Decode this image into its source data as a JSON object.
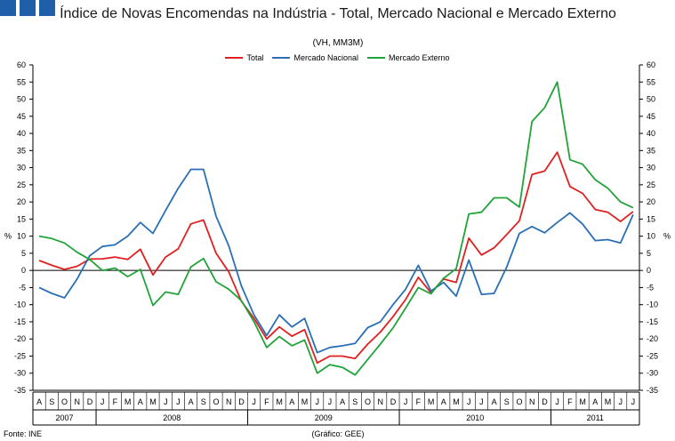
{
  "title": "Índice de Novas Encomendas na Indústria - Total, Mercado Nacional e Mercado Externo",
  "subtitle": "(VH, MM3M)",
  "source": "Fonte: INE",
  "credit": "(Gráfico: GEE)",
  "chart_data": {
    "type": "line",
    "title": "Índice de Novas Encomendas na Indústria - Total, Mercado Nacional e Mercado Externo",
    "subtitle": "(VH, MM3M)",
    "ylabel": "%",
    "ylabel_right": "%",
    "ylim": [
      -35,
      60
    ],
    "ytick_step": 5,
    "yticks": [
      "60",
      "55",
      "50",
      "45",
      "40",
      "35",
      "30",
      "25",
      "20",
      "15",
      "10",
      "5",
      "0",
      "-5",
      "-10",
      "-15",
      "-20",
      "-25",
      "-30",
      "-35"
    ],
    "grid": false,
    "legend_position": "top-center",
    "x": [
      "A",
      "S",
      "O",
      "N",
      "D",
      "J",
      "F",
      "M",
      "A",
      "M",
      "J",
      "J",
      "A",
      "S",
      "O",
      "N",
      "D",
      "J",
      "F",
      "M",
      "A",
      "M",
      "J",
      "J",
      "A",
      "S",
      "O",
      "N",
      "D",
      "J",
      "F",
      "M",
      "A",
      "M",
      "J",
      "J",
      "A",
      "S",
      "O",
      "N",
      "D",
      "J",
      "F",
      "M",
      "A",
      "M",
      "J",
      "J"
    ],
    "year_labels": [
      {
        "label": "2007",
        "start": 0,
        "end": 4
      },
      {
        "label": "2008",
        "start": 5,
        "end": 16
      },
      {
        "label": "2009",
        "start": 17,
        "end": 28
      },
      {
        "label": "2010",
        "start": 29,
        "end": 40
      },
      {
        "label": "2011",
        "start": 41,
        "end": 47
      }
    ],
    "series": [
      {
        "name": "Total",
        "color": "#e02020",
        "values": [
          2.9,
          1.5,
          0.3,
          1.2,
          3.3,
          3.4,
          3.9,
          3.2,
          6.2,
          -1.3,
          3.9,
          6.3,
          13.6,
          14.7,
          5.0,
          -0.4,
          -9.0,
          -14.0,
          -20.0,
          -16.5,
          -19.2,
          -17.3,
          -27.0,
          -25.0,
          -25.0,
          -25.7,
          -21.5,
          -18.0,
          -13.5,
          -8.5,
          -2.0,
          -6.5,
          -2.5,
          -3.5,
          9.4,
          4.5,
          6.6,
          10.5,
          14.5,
          28.0,
          29.0,
          34.5,
          24.5,
          22.5,
          17.8,
          17.0,
          14.3,
          17.2
        ]
      },
      {
        "name": "Mercado Nacional",
        "color": "#2a6fb5",
        "values": [
          -5.0,
          -6.7,
          -8.0,
          -2.5,
          4.3,
          7.0,
          7.5,
          10.0,
          14.0,
          10.8,
          17.5,
          24.0,
          29.5,
          29.5,
          15.8,
          7.2,
          -4.5,
          -13.0,
          -19.0,
          -13.0,
          -16.5,
          -14.0,
          -24.0,
          -22.5,
          -22.0,
          -21.3,
          -16.7,
          -15.0,
          -10.0,
          -5.5,
          1.5,
          -6.0,
          -3.5,
          -7.5,
          3.0,
          -7.0,
          -6.7,
          1.0,
          10.8,
          12.8,
          11.0,
          14.0,
          16.8,
          13.5,
          8.7,
          9.0,
          8.0,
          16.3
        ]
      },
      {
        "name": "Mercado Externo",
        "color": "#22a33a",
        "values": [
          10.0,
          9.3,
          8.0,
          5.3,
          3.2,
          0.0,
          0.7,
          -1.8,
          0.3,
          -10.2,
          -6.3,
          -7.0,
          1.0,
          3.5,
          -3.3,
          -5.5,
          -8.8,
          -15.0,
          -22.5,
          -19.3,
          -22.0,
          -20.3,
          -30.0,
          -27.5,
          -28.3,
          -30.5,
          -26.0,
          -21.5,
          -16.8,
          -11.0,
          -5.0,
          -6.8,
          -2.3,
          0.5,
          16.5,
          17.0,
          21.2,
          21.2,
          18.5,
          43.5,
          47.5,
          55.0,
          32.3,
          31.0,
          26.5,
          24.0,
          20.0,
          18.3
        ]
      }
    ]
  }
}
